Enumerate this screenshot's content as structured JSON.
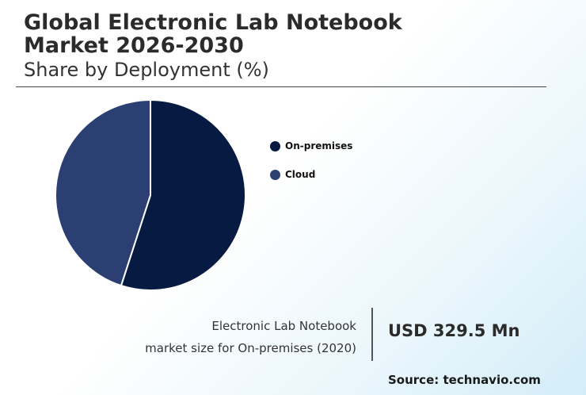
{
  "header": {
    "title_line1": "Global Electronic Lab Notebook",
    "title_line2": "Market 2026-2030",
    "subtitle": "Share by Deployment (%)"
  },
  "chart_data": {
    "type": "pie",
    "categories": [
      "On-premises",
      "Cloud"
    ],
    "values": [
      55,
      45
    ],
    "colors": [
      "#071b42",
      "#2b3f72"
    ],
    "legend_position": "right"
  },
  "stat": {
    "caption_line1": "Electronic Lab Notebook",
    "caption_line2": "market size for On-premises (2020)",
    "value": "USD 329.5 Mn"
  },
  "source": "Source: technavio.com"
}
